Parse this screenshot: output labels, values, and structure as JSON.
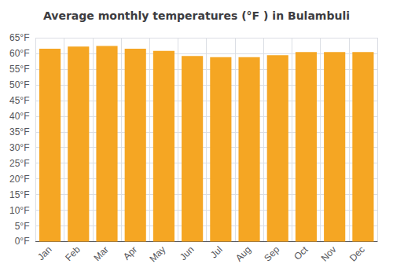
{
  "chart_data": {
    "type": "bar",
    "title": "Average monthly temperatures (°F ) in Bulambuli",
    "categories": [
      "Jan",
      "Feb",
      "Mar",
      "Apr",
      "May",
      "Jun",
      "Jul",
      "Aug",
      "Sep",
      "Oct",
      "Nov",
      "Dec"
    ],
    "values": [
      61.5,
      62.2,
      62.4,
      61.5,
      60.8,
      59.2,
      58.8,
      58.8,
      59.4,
      60.4,
      60.4,
      60.4
    ],
    "color": "#F5A623",
    "ylim": [
      0,
      65
    ],
    "yticks": [
      {
        "value": 0,
        "label": "0°F"
      },
      {
        "value": 5,
        "label": "5°F"
      },
      {
        "value": 10,
        "label": "10°F"
      },
      {
        "value": 15,
        "label": "15°F"
      },
      {
        "value": 20,
        "label": "20°F"
      },
      {
        "value": 25,
        "label": "25°F"
      },
      {
        "value": 30,
        "label": "30°F"
      },
      {
        "value": 35,
        "label": "35°F"
      },
      {
        "value": 40,
        "label": "40°F"
      },
      {
        "value": 45,
        "label": "45°F"
      },
      {
        "value": 50,
        "label": "50°F"
      },
      {
        "value": 55,
        "label": "55°F"
      },
      {
        "value": 60,
        "label": "60°F"
      },
      {
        "value": 65,
        "label": "65°F"
      }
    ],
    "grid": true
  }
}
